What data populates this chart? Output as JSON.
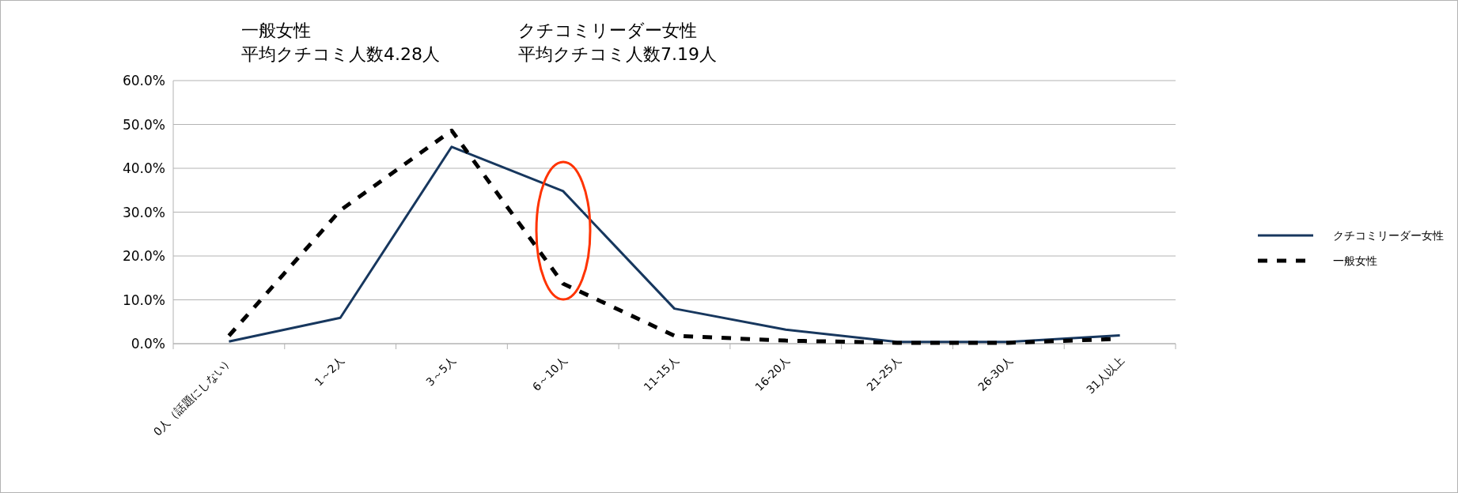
{
  "chart_data": {
    "type": "line",
    "annotations": [
      "一般女性",
      "平均クチコミ人数4.28人",
      "クチコミリーダー女性",
      "平均クチコミ人数7.19人"
    ],
    "categories": [
      "0人（話題にしない）",
      "1～2人",
      "3～5人",
      "6～10人",
      "11-15人",
      "16-20人",
      "21-25人",
      "26-30人",
      "31人以上"
    ],
    "series": [
      {
        "name": "クチコミリーダー女性",
        "color": "#17375e",
        "line_style": "solid",
        "values": [
          0.5,
          5.9,
          44.9,
          34.8,
          8.0,
          3.2,
          0.4,
          0.4,
          1.9
        ]
      },
      {
        "name": "一般女性",
        "color": "#000000",
        "line_style": "dashed",
        "values": [
          1.8,
          30.4,
          48.6,
          13.7,
          1.8,
          0.7,
          0.2,
          0.2,
          1.1
        ]
      }
    ],
    "ylim": [
      0,
      60
    ],
    "yticks": [
      {
        "value": 0,
        "label": "0.0%"
      },
      {
        "value": 10,
        "label": "10.0%"
      },
      {
        "value": 20,
        "label": "20.0%"
      },
      {
        "value": 30,
        "label": "30.0%"
      },
      {
        "value": 40,
        "label": "40.0%"
      },
      {
        "value": 50,
        "label": "50.0%"
      },
      {
        "value": 60,
        "label": "60.0%"
      }
    ],
    "grid": "y",
    "legend": "right",
    "marker": "none"
  }
}
